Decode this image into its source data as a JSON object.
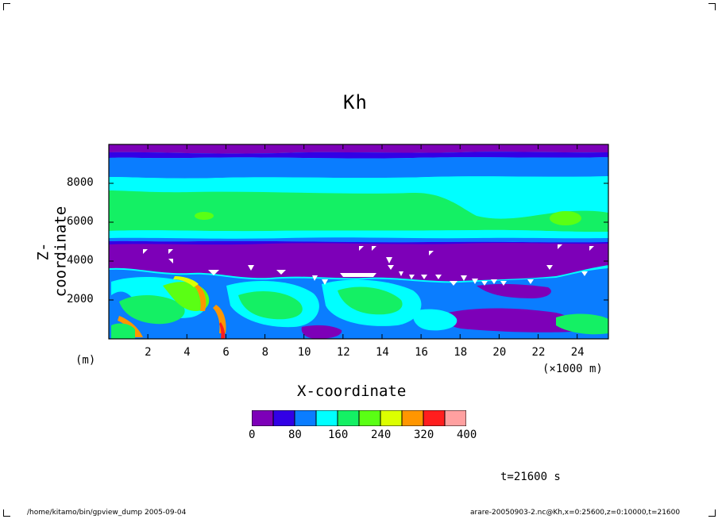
{
  "chart_data": {
    "type": "heatmap",
    "title": "Kh",
    "xlabel": "X-coordinate",
    "ylabel": "Z-coordinate",
    "x_unit_label": "(m)",
    "x_scale_label": "(×1000 m)",
    "x_ticks": [
      "2",
      "4",
      "6",
      "8",
      "10",
      "12",
      "14",
      "16",
      "18",
      "20",
      "22",
      "24"
    ],
    "y_ticks": [
      "2000",
      "4000",
      "6000",
      "8000"
    ],
    "xlim": [
      0,
      25600
    ],
    "ylim": [
      0,
      10000
    ],
    "colorbar": {
      "levels": [
        "0",
        "80",
        "160",
        "240",
        "320",
        "400"
      ],
      "bins": [
        0,
        40,
        80,
        120,
        160,
        200,
        240,
        280,
        320,
        360,
        400
      ],
      "colors": [
        "#7d00b8",
        "#3200e6",
        "#0a7dff",
        "#00ffff",
        "#14f064",
        "#5aff14",
        "#dcff00",
        "#ff9600",
        "#ff1e1e",
        "#ffa0a0"
      ]
    },
    "time_label": "t=21600 s",
    "layers_from_top": [
      {
        "z_range": [
          9400,
          10000
        ],
        "kh": "0-40"
      },
      {
        "z_range": [
          8600,
          9400
        ],
        "kh": "40-80"
      },
      {
        "z_range": [
          7600,
          8600
        ],
        "kh": "80-120"
      },
      {
        "z_range": [
          6000,
          7600
        ],
        "kh": "120-160"
      },
      {
        "z_range": [
          5200,
          6000
        ],
        "kh": "80-120"
      },
      {
        "z_range": [
          3300,
          5000
        ],
        "kh": "0-40"
      },
      {
        "z_range": [
          0,
          3300
        ],
        "kh": "40-280 turbulent"
      }
    ]
  },
  "footer": {
    "left": "/home/kitamo/bin/gpview_dump  2005-09-04",
    "right": "arare-20050903-2.nc@Kh,x=0:25600,z=0:10000,t=21600"
  }
}
